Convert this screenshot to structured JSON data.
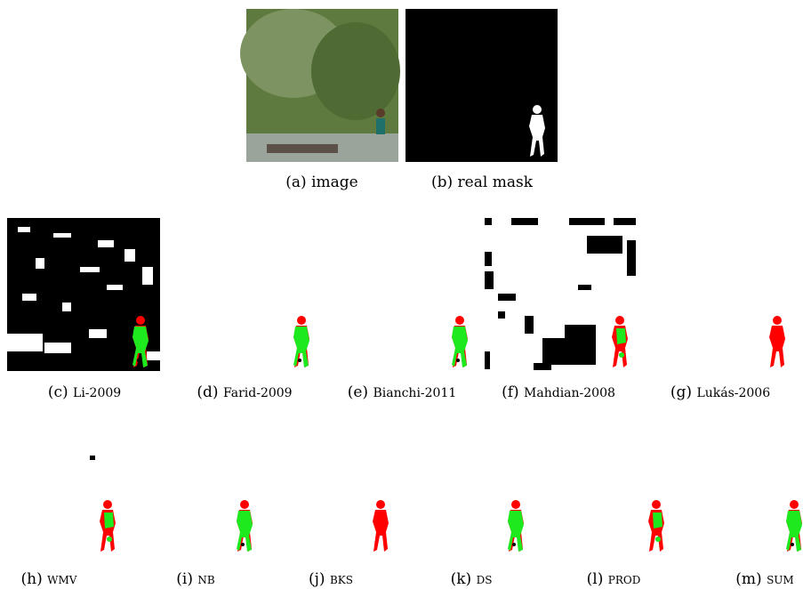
{
  "panels": [
    {
      "label": "(a)",
      "caption": "image"
    },
    {
      "label": "(b)",
      "caption": "real mask"
    },
    {
      "label": "(c)",
      "caption": "Li-2009"
    },
    {
      "label": "(d)",
      "caption": "Farid-2009"
    },
    {
      "label": "(e)",
      "caption": "Bianchi-2011"
    },
    {
      "label": "(f)",
      "caption": "Mahdian-2008"
    },
    {
      "label": "(g)",
      "caption": "Lukás-2006"
    },
    {
      "label": "(h)",
      "caption": "wmv"
    },
    {
      "label": "(i)",
      "caption": "nb"
    },
    {
      "label": "(j)",
      "caption": "bks"
    },
    {
      "label": "(k)",
      "caption": "ds"
    },
    {
      "label": "(l)",
      "caption": "prod"
    },
    {
      "label": "(m)",
      "caption": "sum"
    }
  ]
}
